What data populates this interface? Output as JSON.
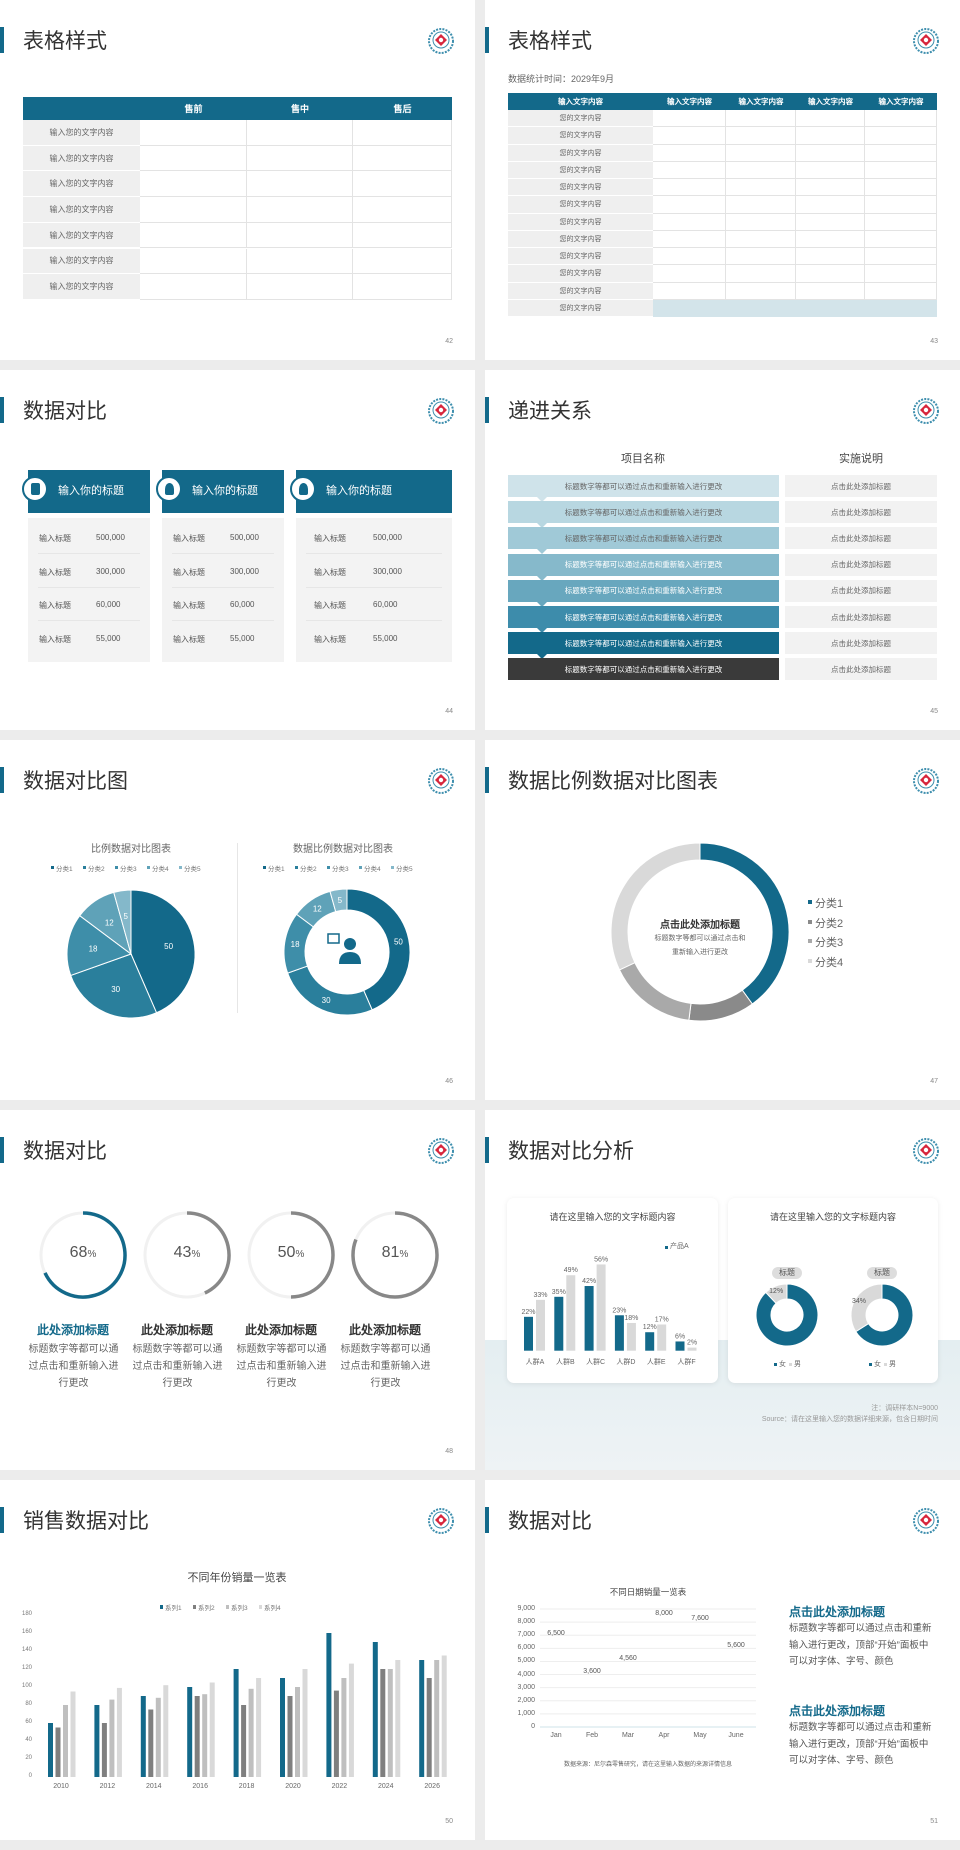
{
  "colors": {
    "primary": "#13698a",
    "gray": "#888888",
    "light_gray": "#d9d9d9",
    "dark": "#3a3a3a",
    "accent_red": "#d7263d"
  },
  "logo": {
    "icon": "emblem-logo"
  },
  "slides": [
    {
      "page": "42",
      "title": "表格样式",
      "table": {
        "headers": [
          "",
          "售前",
          "售中",
          "售后"
        ],
        "rows": [
          "输入您的文字内容",
          "输入您的文字内容",
          "输入您的文字内容",
          "输入您的文字内容",
          "输入您的文字内容",
          "输入您的文字内容",
          "输入您的文字内容"
        ]
      }
    },
    {
      "page": "43",
      "title": "表格样式",
      "subtitle": "数据统计时间：2029年9月",
      "table": {
        "headers": [
          "输入文字内容",
          "输入文字内容",
          "输入文字内容",
          "输入文字内容",
          "输入文字内容"
        ],
        "rows": [
          "您的文字内容",
          "您的文字内容",
          "您的文字内容",
          "您的文字内容",
          "您的文字内容",
          "您的文字内容",
          "您的文字内容",
          "您的文字内容",
          "您的文字内容",
          "您的文字内容",
          "您的文字内容",
          "您的文字内容"
        ]
      }
    },
    {
      "page": "44",
      "title": "数据对比",
      "cards": [
        {
          "title": "输入你的标题",
          "icon": "phone-document-icon",
          "rows": [
            {
              "label": "输入标题",
              "value": "500,000"
            },
            {
              "label": "输入标题",
              "value": "300,000"
            },
            {
              "label": "输入标题",
              "value": "60,000"
            },
            {
              "label": "输入标题",
              "value": "55,000"
            }
          ]
        },
        {
          "title": "输入你的标题",
          "icon": "user-icon",
          "rows": [
            {
              "label": "输入标题",
              "value": "500,000"
            },
            {
              "label": "输入标题",
              "value": "300,000"
            },
            {
              "label": "输入标题",
              "value": "60,000"
            },
            {
              "label": "输入标题",
              "value": "55,000"
            }
          ]
        },
        {
          "title": "输入你的标题",
          "icon": "team-icon",
          "rows": [
            {
              "label": "输入标题",
              "value": "500,000"
            },
            {
              "label": "输入标题",
              "value": "300,000"
            },
            {
              "label": "输入标题",
              "value": "60,000"
            },
            {
              "label": "输入标题",
              "value": "55,000"
            }
          ]
        }
      ]
    },
    {
      "page": "45",
      "title": "递进关系",
      "col1": "项目名称",
      "col2": "实施说明",
      "rows": [
        {
          "item": "标题数字等都可以通过点击和重新输入进行更改",
          "note": "点击此处添加标题",
          "color": "#cfe3ea"
        },
        {
          "item": "标题数字等都可以通过点击和重新输入进行更改",
          "note": "点击此处添加标题",
          "color": "#b8d7e1"
        },
        {
          "item": "标题数字等都可以通过点击和重新输入进行更改",
          "note": "点击此处添加标题",
          "color": "#a0c9d7"
        },
        {
          "item": "标题数字等都可以通过点击和重新输入进行更改",
          "note": "点击此处添加标题",
          "color": "#86b9cb"
        },
        {
          "item": "标题数字等都可以通过点击和重新输入进行更改",
          "note": "点击此处添加标题",
          "color": "#68a7be"
        },
        {
          "item": "标题数字等都可以通过点击和重新输入进行更改",
          "note": "点击此处添加标题",
          "color": "#3d8cab"
        },
        {
          "item": "标题数字等都可以通过点击和重新输入进行更改",
          "note": "点击此处添加标题",
          "color": "#13698a"
        },
        {
          "item": "标题数字等都可以通过点击和重新输入进行更改",
          "note": "点击此处添加标题",
          "color": "#3a3a3a"
        }
      ]
    },
    {
      "page": "46",
      "title": "数据对比图"
    },
    {
      "page": "47",
      "title": "数据比例数据对比图表",
      "center_title": "点击此处添加标题",
      "center_text": [
        "标题数字等都可以通过点击和",
        "重新输入进行更改"
      ]
    },
    {
      "page": "48",
      "title": "数据对比",
      "gauges": [
        {
          "value": 68,
          "unit": "%",
          "title": "此处添加标题",
          "text": "标题数字等都可以通过点击和重新输入进行更改",
          "color": "#13698a"
        },
        {
          "value": 43,
          "unit": "%",
          "title": "此处添加标题",
          "text": "标题数字等都可以通过点击和重新输入进行更改",
          "color": "#888888"
        },
        {
          "value": 50,
          "unit": "%",
          "title": "此处添加标题",
          "text": "标题数字等都可以通过点击和重新输入进行更改",
          "color": "#888888"
        },
        {
          "value": 81,
          "unit": "%",
          "title": "此处添加标题",
          "text": "标题数字等都可以通过点击和重新输入进行更改",
          "color": "#888888"
        }
      ]
    },
    {
      "page": "49",
      "title": "数据对比分析",
      "card1_title": "请在这里输入您的文字标题内容",
      "card2_title": "请在这里输入您的文字标题内容",
      "note": "注：调研样本N=9000",
      "source": "Source：请在这里输入您的数据详细来源，包含日期时间"
    },
    {
      "page": "50",
      "title": "销售数据对比"
    },
    {
      "page": "51",
      "title": "数据对比",
      "blocks": [
        {
          "title": "点击此处添加标题",
          "text": "标题数字等都可以通过点击和重新输入进行更改，顶部“开始”面板中可以对字体、字号、颜色"
        },
        {
          "title": "点击此处添加标题",
          "text": "标题数字等都可以通过点击和重新输入进行更改，顶部“开始”面板中可以对字体、字号、颜色"
        }
      ]
    }
  ],
  "chart_data": [
    {
      "type": "pie",
      "title": "比例数据对比图表",
      "categories": [
        "分类1",
        "分类2",
        "分类3",
        "分类4",
        "分类5"
      ],
      "values": [
        50,
        30,
        18,
        12,
        5
      ],
      "colors": [
        "#13698a",
        "#2a7f9c",
        "#3e8ea9",
        "#5fa2b8",
        "#84b8ca"
      ],
      "legend": "top"
    },
    {
      "type": "pie",
      "subtype": "donut",
      "title": "数据比例数据对比图表",
      "categories": [
        "分类1",
        "分类2",
        "分类3",
        "分类4",
        "分类5"
      ],
      "values": [
        50,
        30,
        18,
        12,
        5
      ],
      "colors": [
        "#13698a",
        "#2a7f9c",
        "#3e8ea9",
        "#5fa2b8",
        "#84b8ca"
      ],
      "legend": "top",
      "center_icon": "customer-service-icon"
    },
    {
      "type": "pie",
      "subtype": "donut",
      "categories": [
        "分类1",
        "分类2",
        "分类3",
        "分类4"
      ],
      "values": [
        40,
        12,
        16,
        32
      ],
      "colors": [
        "#13698a",
        "#8a8a8a",
        "#a9a9a9",
        "#d9d9d9"
      ],
      "legend": "right"
    },
    {
      "type": "bar",
      "title": "请在这里输入您的文字标题内容",
      "categories": [
        "人群A",
        "人群B",
        "人群C",
        "人群D",
        "人群E",
        "人群F"
      ],
      "series": [
        {
          "name": "产品A",
          "values": [
            22,
            35,
            42,
            23,
            12,
            6
          ],
          "color": "#13698a"
        },
        {
          "values": [
            33,
            49,
            56,
            18,
            17,
            2
          ],
          "color": "#d9d9d9"
        }
      ],
      "value_format": "percent",
      "legend": "top-right"
    },
    {
      "type": "pie",
      "subtype": "donut",
      "label": "标题",
      "categories": [
        "女",
        "男"
      ],
      "values": [
        88,
        12
      ],
      "colors": [
        "#13698a",
        "#d9d9d9"
      ],
      "legend": "bottom"
    },
    {
      "type": "pie",
      "subtype": "donut",
      "label": "标题",
      "categories": [
        "女",
        "男"
      ],
      "values": [
        66,
        34
      ],
      "colors": [
        "#13698a",
        "#d9d9d9"
      ],
      "legend": "bottom"
    },
    {
      "type": "bar",
      "title": "不同年份销量一览表",
      "categories": [
        "2010",
        "2012",
        "2014",
        "2016",
        "2018",
        "2020",
        "2022",
        "2024",
        "2026"
      ],
      "series": [
        {
          "name": "系列1",
          "values": [
            60,
            80,
            90,
            100,
            120,
            110,
            160,
            150,
            130
          ],
          "color": "#13698a"
        },
        {
          "name": "系列2",
          "values": [
            55,
            60,
            75,
            90,
            80,
            90,
            96,
            120,
            110
          ],
          "color": "#7f7f7f"
        },
        {
          "name": "系列3",
          "values": [
            80,
            86,
            88,
            92,
            98,
            100,
            110,
            120,
            130
          ],
          "color": "#bfbfbf"
        },
        {
          "name": "系列4",
          "values": [
            95,
            99,
            102,
            105,
            110,
            120,
            126,
            130,
            135
          ],
          "color": "#d9d9d9"
        }
      ],
      "yticks": [
        "0",
        "20",
        "40",
        "60",
        "80",
        "100",
        "120",
        "140",
        "160",
        "180"
      ],
      "ylim": [
        0,
        180
      ],
      "legend": "top"
    },
    {
      "type": "bar",
      "title": "不同日期销量一览表",
      "categories": [
        "Jan",
        "Feb",
        "Mar",
        "Apr",
        "May",
        "June"
      ],
      "values": [
        6500,
        3600,
        4560,
        8000,
        7600,
        5600
      ],
      "labels": [
        "6,500",
        "3,600",
        "4,560",
        "8,000",
        "7,600",
        "5,600"
      ],
      "yticks": [
        "0",
        "1,000",
        "2,000",
        "3,000",
        "4,000",
        "5,000",
        "6,000",
        "7,000",
        "8,000",
        "9,000"
      ],
      "ylim": [
        0,
        9000
      ],
      "grid": true,
      "source": "数据来源：尼尔森零售研究，请在这里输入数据的来源详情信息",
      "color": "#13698a"
    }
  ]
}
